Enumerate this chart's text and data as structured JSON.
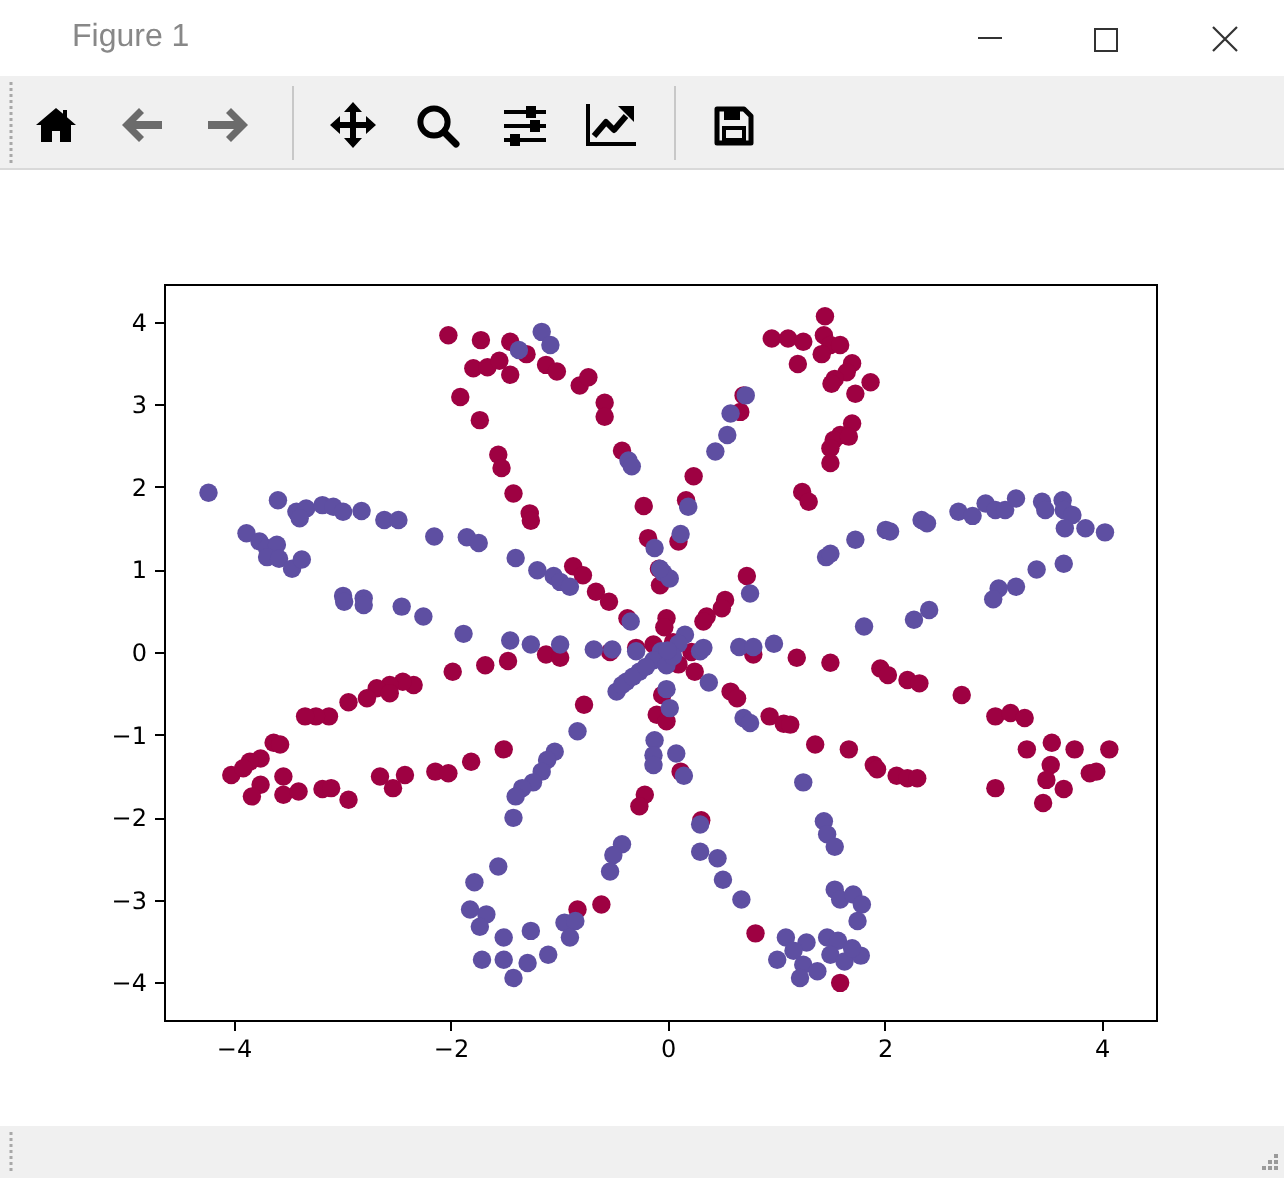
{
  "chart_data": {
    "type": "scatter",
    "annotations": [
      "Figure 1"
    ],
    "marker": "circle",
    "xlim": [
      -4.64,
      4.5
    ],
    "ylim": [
      -4.46,
      4.46
    ],
    "xticks": [
      {
        "value": -4,
        "label": "−4"
      },
      {
        "value": -2,
        "label": "−2"
      },
      0,
      2,
      4
    ],
    "yticks": [
      {
        "value": -4,
        "label": "−4"
      },
      {
        "value": -3,
        "label": "−3"
      },
      {
        "value": -2,
        "label": "−2"
      },
      {
        "value": -1,
        "label": "−1"
      },
      0,
      1,
      2,
      3,
      4
    ],
    "series": [
      {
        "color": "#9e0142",
        "x": [
          -2.02,
          -1.72,
          -1.45,
          -1.79,
          -1.66,
          -1.55,
          -1.45,
          -1.3,
          -1.12,
          -1.02,
          -0.81,
          -0.73,
          -0.58,
          -0.58,
          -1.91,
          -1.73,
          -1.56,
          -1.53,
          -1.42,
          -1.27,
          -1.26,
          -0.42,
          -0.22,
          -0.18,
          -0.87,
          -0.78,
          -0.66,
          -0.54,
          -0.37,
          -0.07,
          -0.01,
          -0.03,
          -0.29,
          -0.13,
          1.45,
          0.96,
          1.11,
          1.25,
          1.44,
          1.5,
          1.59,
          1.42,
          1.2,
          1.7,
          1.65,
          1.54,
          1.51,
          1.87,
          1.73,
          1.7,
          1.59,
          1.53,
          1.67,
          1.5,
          1.5,
          1.24,
          1.3,
          0.7,
          0.67,
          0.24,
          0.17,
          0.1,
          -0.08,
          0.73,
          0.53,
          0.5,
          0.36,
          0.33,
          -1.98,
          -1.68,
          -1.47,
          -1.12,
          -0.99,
          -0.53,
          -2.34,
          -2.44,
          -2.56,
          -2.68,
          -2.56,
          -2.77,
          -2.94,
          -3.12,
          -3.24,
          -3.34,
          -3.63,
          -3.57,
          -3.75,
          -3.85,
          -4.02,
          -3.91,
          -3.75,
          -3.83,
          -3.54,
          -3.54,
          -3.4,
          -3.18,
          -3.1,
          -2.94,
          -2.65,
          -2.53,
          -2.42,
          -2.14,
          -2.02,
          -1.81,
          -1.51,
          -0.77,
          -0.05,
          -0.1,
          -0.01,
          -0.21,
          -0.26,
          -0.83,
          -0.61,
          1.19,
          1.5,
          0.79,
          1.96,
          2.03,
          2.21,
          2.32,
          2.71,
          3.02,
          3.16,
          3.29,
          3.31,
          3.54,
          3.75,
          4.07,
          3.53,
          3.49,
          3.65,
          3.46,
          3.89,
          3.95,
          3.02,
          1.36,
          1.67,
          1.9,
          1.93,
          2.11,
          2.21,
          2.3,
          0.94,
          1.07,
          1.13,
          0.58,
          0.64,
          0.25,
          0.12,
          0.31,
          0.81,
          1.59,
          0.05,
          0.22,
          0.1
        ],
        "values": [
          3.84,
          3.78,
          3.76,
          3.44,
          3.45,
          3.53,
          3.36,
          3.61,
          3.48,
          3.4,
          3.23,
          3.33,
          3.02,
          2.85,
          3.09,
          2.81,
          2.39,
          2.23,
          1.92,
          1.68,
          1.59,
          2.44,
          1.77,
          1.38,
          1.04,
          0.93,
          0.73,
          0.61,
          0.41,
          0.81,
          0.41,
          0.3,
          0.05,
          0.09,
          4.07,
          3.8,
          3.8,
          3.76,
          3.84,
          3.72,
          3.72,
          3.61,
          3.49,
          3.5,
          3.39,
          3.31,
          3.25,
          3.27,
          3.13,
          2.77,
          2.63,
          2.57,
          2.61,
          2.47,
          2.29,
          1.94,
          1.82,
          3.11,
          2.91,
          2.13,
          1.84,
          1.34,
          1.01,
          0.92,
          0.63,
          0.53,
          0.43,
          0.37,
          -0.24,
          -0.16,
          -0.11,
          -0.03,
          -0.07,
          0.0,
          -0.4,
          -0.36,
          -0.4,
          -0.44,
          -0.5,
          -0.56,
          -0.61,
          -0.78,
          -0.78,
          -0.78,
          -1.1,
          -1.12,
          -1.29,
          -1.33,
          -1.49,
          -1.41,
          -1.61,
          -1.75,
          -1.51,
          -1.73,
          -1.69,
          -1.66,
          -1.65,
          -1.79,
          -1.51,
          -1.65,
          -1.49,
          -1.45,
          -1.47,
          -1.33,
          -1.18,
          -0.64,
          -0.52,
          -0.76,
          -0.84,
          -1.73,
          -1.87,
          -3.12,
          -3.06,
          -0.07,
          -0.13,
          -0.03,
          -0.2,
          -0.28,
          -0.34,
          -0.38,
          -0.52,
          -0.78,
          -0.74,
          -0.8,
          -1.18,
          -1.1,
          -1.18,
          -1.18,
          -1.37,
          -1.55,
          -1.66,
          -1.83,
          -1.47,
          -1.45,
          -1.65,
          -1.12,
          -1.18,
          -1.37,
          -1.42,
          -1.5,
          -1.53,
          -1.53,
          -0.78,
          -0.87,
          -0.88,
          -0.48,
          -0.56,
          -0.24,
          -1.45,
          -2.04,
          -3.41,
          -4.01,
          0.12,
          0.0,
          -0.15
        ]
      },
      {
        "color": "#5e4fa2",
        "x": [
          -1.16,
          -1.08,
          -1.37,
          -0.36,
          -0.33,
          -0.12,
          -0.04,
          0.02,
          -4.23,
          -3.59,
          -3.42,
          -3.33,
          -3.18,
          -3.08,
          -2.99,
          -2.82,
          -3.39,
          -2.61,
          -2.48,
          -3.88,
          -3.76,
          -3.69,
          -3.6,
          -3.69,
          -3.58,
          -3.46,
          -3.37,
          -2.15,
          -1.85,
          -1.74,
          -1.4,
          -1.2,
          -1.05,
          -0.99,
          -0.9,
          -2.99,
          -2.98,
          -2.8,
          -2.8,
          -2.45,
          -2.25,
          -1.88,
          -1.45,
          -1.26,
          -0.99,
          -0.68,
          -0.51,
          -0.29,
          -0.34,
          -0.06,
          0.72,
          0.58,
          0.55,
          0.44,
          0.19,
          0.12,
          -0.07,
          0.76,
          0.16,
          0.3,
          0.66,
          0.79,
          0.98,
          1.46,
          1.5,
          1.73,
          2.01,
          2.05,
          2.34,
          2.39,
          2.68,
          2.81,
          2.93,
          3.02,
          3.11,
          3.21,
          3.45,
          3.64,
          3.48,
          3.65,
          3.73,
          3.66,
          3.85,
          4.03,
          3.65,
          3.4,
          3.21,
          3.05,
          3.0,
          2.41,
          2.27,
          1.81,
          -0.47,
          -0.38,
          -0.26,
          -0.13,
          -0.01,
          0.02,
          -0.83,
          -1.04,
          -1.11,
          -1.16,
          -1.24,
          -1.34,
          -1.4,
          -1.42,
          -0.12,
          0.08,
          -0.42,
          -0.5,
          -0.53,
          -1.56,
          -1.78,
          -1.82,
          -1.67,
          -1.73,
          -1.51,
          -1.26,
          -0.95,
          -0.85,
          -0.9,
          -1.1,
          -1.29,
          -1.51,
          -1.71,
          -1.42,
          0.33,
          -0.01,
          0.38,
          0.7,
          0.76,
          -0.13,
          -0.13,
          0.15,
          1.25,
          0.3,
          0.3,
          0.46,
          0.51,
          0.68,
          1.44,
          1.47,
          1.54,
          1.54,
          1.59,
          1.71,
          1.79,
          1.75,
          1.09,
          1.28,
          1.16,
          1.01,
          1.25,
          1.38,
          1.22,
          1.47,
          1.57,
          1.5,
          1.63,
          1.78,
          1.7,
          0.1,
          0.05,
          -0.42,
          -0.32,
          -0.2,
          0.0
        ],
        "values": [
          3.88,
          3.72,
          3.66,
          2.32,
          2.25,
          1.26,
          0.96,
          0.89,
          1.93,
          1.84,
          1.7,
          1.74,
          1.78,
          1.76,
          1.7,
          1.71,
          1.62,
          1.6,
          1.6,
          1.44,
          1.34,
          1.26,
          1.3,
          1.15,
          1.13,
          1.01,
          1.12,
          1.4,
          1.39,
          1.32,
          1.14,
          0.99,
          0.92,
          0.85,
          0.79,
          0.68,
          0.61,
          0.65,
          0.57,
          0.55,
          0.43,
          0.22,
          0.14,
          0.09,
          0.09,
          0.03,
          0.03,
          0.01,
          0.37,
          0.01,
          3.11,
          2.89,
          2.63,
          2.43,
          1.76,
          1.43,
          1.01,
          0.71,
          0.21,
          0.01,
          0.06,
          0.06,
          0.1,
          1.15,
          1.19,
          1.36,
          1.48,
          1.46,
          1.6,
          1.56,
          1.7,
          1.65,
          1.8,
          1.72,
          1.72,
          1.86,
          1.82,
          1.84,
          1.72,
          1.72,
          1.66,
          1.5,
          1.5,
          1.45,
          1.07,
          1.0,
          0.79,
          0.77,
          0.64,
          0.51,
          0.39,
          0.31,
          -0.48,
          -0.36,
          -0.24,
          -0.1,
          -0.45,
          -0.68,
          -0.96,
          -1.21,
          -1.31,
          -1.45,
          -1.58,
          -1.65,
          -1.75,
          -2.01,
          -1.07,
          -1.23,
          -2.33,
          -2.46,
          -2.66,
          -2.6,
          -2.79,
          -3.12,
          -3.18,
          -3.33,
          -3.46,
          -3.38,
          -3.28,
          -3.26,
          -3.46,
          -3.67,
          -3.77,
          -3.73,
          -3.73,
          -3.95,
          0.05,
          -0.16,
          -0.37,
          -0.8,
          -0.86,
          -1.25,
          -1.37,
          -1.5,
          -1.58,
          -2.09,
          -2.42,
          -2.5,
          -2.76,
          -3.0,
          -2.05,
          -2.21,
          -2.36,
          -2.88,
          -3.0,
          -2.94,
          -3.06,
          -3.26,
          -3.46,
          -3.52,
          -3.62,
          -3.73,
          -3.79,
          -3.87,
          -3.95,
          -3.46,
          -3.5,
          -3.67,
          -3.75,
          -3.68,
          -3.59,
          0.1,
          -0.05,
          -0.4,
          -0.3,
          -0.18,
          0.02
        ]
      }
    ]
  }
}
